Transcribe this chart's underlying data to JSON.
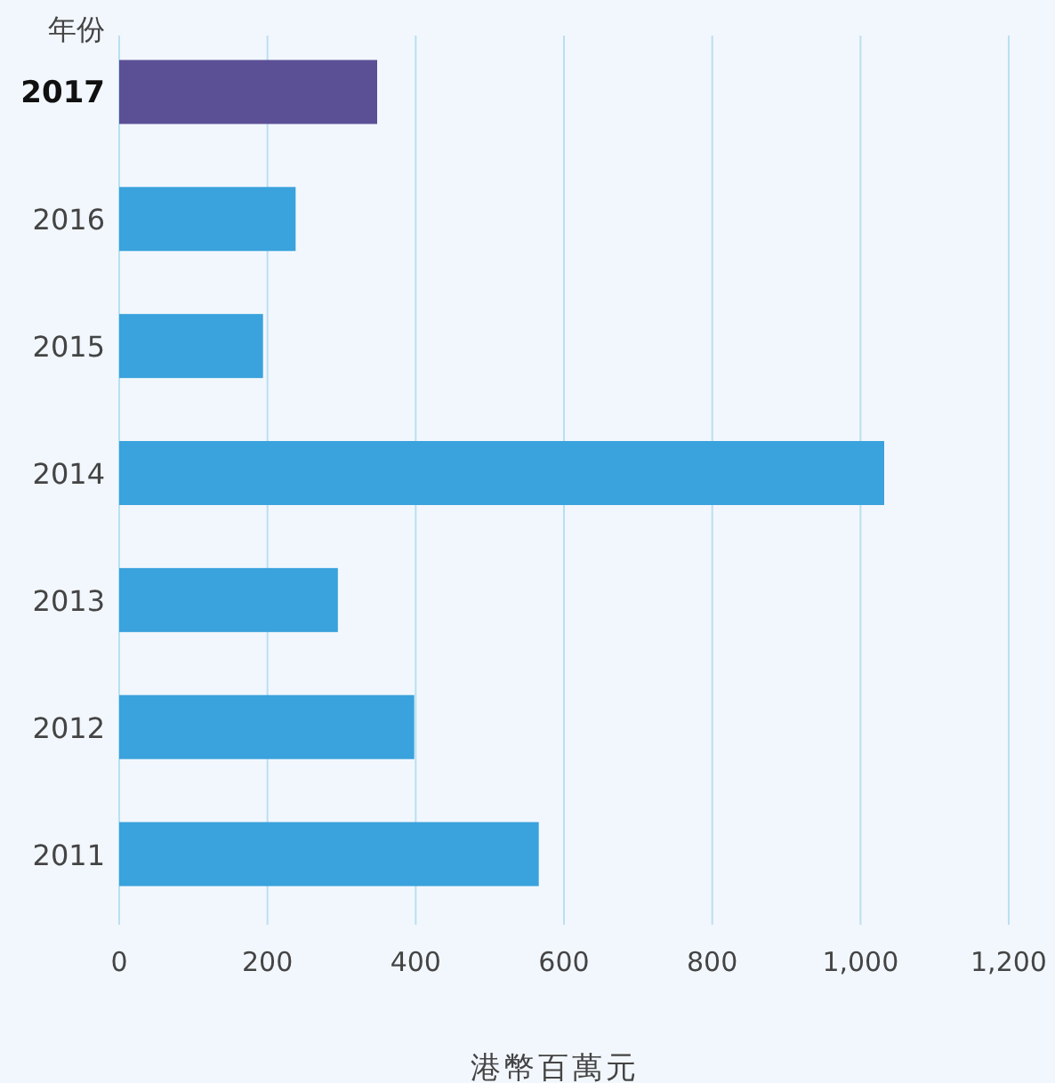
{
  "chart_data": {
    "type": "bar",
    "orientation": "horizontal",
    "ylabel": "年份",
    "xlabel": "港幣百萬元",
    "categories": [
      "2017",
      "2016",
      "2015",
      "2014",
      "2013",
      "2012",
      "2011"
    ],
    "values": [
      348,
      238,
      194,
      1032,
      295,
      398,
      566
    ],
    "colors": [
      "#5b4f96",
      "#3aa2dc",
      "#3aa2dc",
      "#3aa2dc",
      "#3aa2dc",
      "#3aa2dc",
      "#3aa2dc"
    ],
    "xlim": [
      0,
      1200
    ],
    "xticks": [
      0,
      200,
      400,
      600,
      800,
      {
        "value": 1000,
        "label": "1,000"
      },
      {
        "value": 1200,
        "label": "1,200"
      }
    ],
    "grid": "x"
  }
}
